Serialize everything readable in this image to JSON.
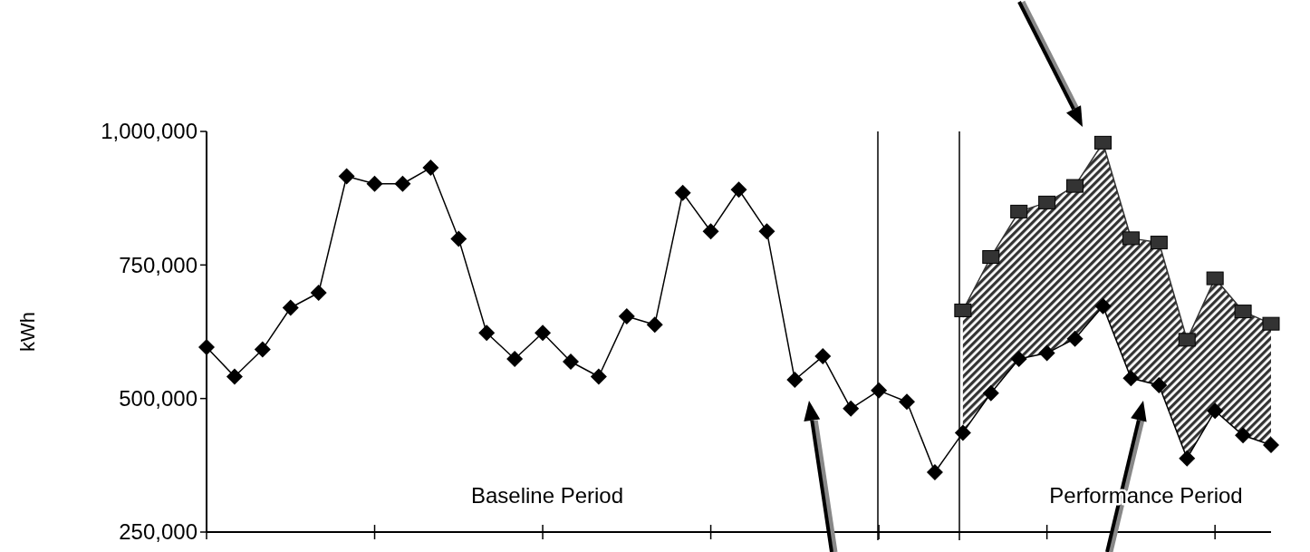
{
  "chart_data": {
    "type": "line",
    "ylabel": "kWh",
    "categories": [
      null,
      null,
      null,
      null,
      null,
      null,
      null,
      null,
      null,
      null,
      null,
      null,
      null,
      null,
      null,
      null,
      null,
      null,
      null,
      null,
      null,
      null,
      null,
      null,
      null,
      null,
      null,
      null,
      null,
      null,
      null,
      null,
      null,
      null,
      null,
      null,
      null,
      null,
      null
    ],
    "ylim": [
      250000,
      1000000
    ],
    "yticks": [
      {
        "value": 250000,
        "label": "250,000"
      },
      {
        "value": 500000,
        "label": "500,000"
      },
      {
        "value": 750000,
        "label": "750,000"
      },
      {
        "value": 1000000,
        "label": "1,000,000"
      }
    ],
    "line_style": "solid",
    "annotations": [
      "Baseline Period",
      "Performance Period"
    ],
    "series": [
      {
        "color": "#000000",
        "marker": "diamond",
        "values": [
          596000,
          541000,
          592000,
          670000,
          698000,
          916000,
          902000,
          902000,
          932000,
          799000,
          623000,
          574000,
          623000,
          569000,
          541000,
          654000,
          638000,
          885000,
          813000,
          891000,
          813000,
          535000,
          579000,
          481000,
          515000,
          494000,
          362000,
          436000,
          510000,
          574000,
          585000,
          612000,
          673000,
          538000,
          525000,
          388000,
          477000,
          431000,
          413000
        ]
      },
      {
        "color": "#333333",
        "marker": "square",
        "values": [
          null,
          null,
          null,
          null,
          null,
          null,
          null,
          null,
          null,
          null,
          null,
          null,
          null,
          null,
          null,
          null,
          null,
          null,
          null,
          null,
          null,
          null,
          null,
          null,
          null,
          null,
          null,
          665000,
          765000,
          850000,
          867000,
          898000,
          979000,
          800000,
          792000,
          610000,
          725000,
          663000,
          640000
        ],
        "lower": [
          null,
          null,
          null,
          null,
          null,
          null,
          null,
          null,
          null,
          null,
          null,
          null,
          null,
          null,
          null,
          null,
          null,
          null,
          null,
          null,
          null,
          null,
          null,
          null,
          null,
          null,
          null,
          436000,
          510000,
          574000,
          585000,
          612000,
          673000,
          538000,
          525000,
          388000,
          477000,
          431000,
          413000
        ],
        "upper": [
          null,
          null,
          null,
          null,
          null,
          null,
          null,
          null,
          null,
          null,
          null,
          null,
          null,
          null,
          null,
          null,
          null,
          null,
          null,
          null,
          null,
          null,
          null,
          null,
          null,
          null,
          null,
          665000,
          765000,
          850000,
          867000,
          898000,
          979000,
          800000,
          792000,
          610000,
          725000,
          663000,
          640000
        ]
      }
    ]
  }
}
